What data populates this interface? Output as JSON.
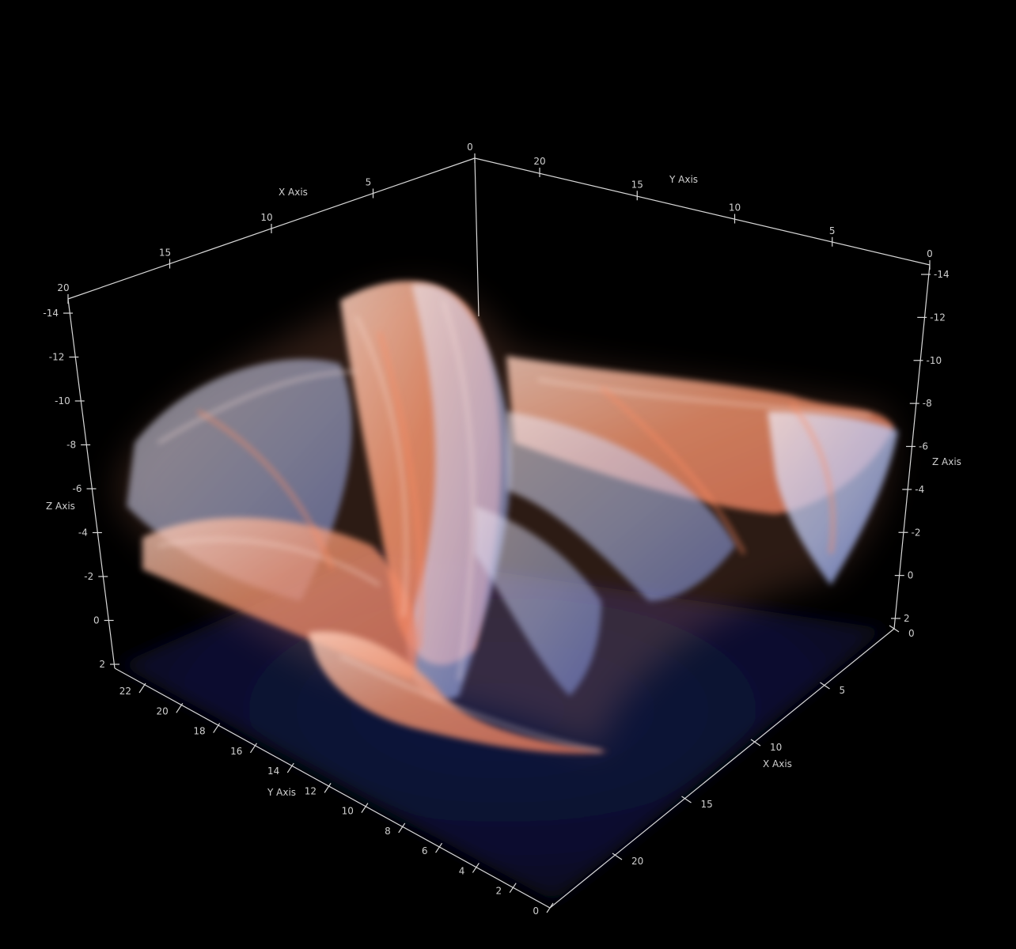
{
  "scene": {
    "background": "#000000",
    "volume_colors": {
      "floor": "#0a1030",
      "warm": "#f4956f",
      "cool": "#9fb4ff",
      "highlight": "#f6e6ea"
    }
  },
  "axes": {
    "color": "#d8d8d8",
    "top_x": {
      "title": "X Axis",
      "ticks": [
        "0",
        "5",
        "10",
        "15",
        "20"
      ]
    },
    "top_y": {
      "title": "Y Axis",
      "ticks": [
        "20",
        "15",
        "10",
        "5",
        "0"
      ]
    },
    "left_z": {
      "title": "Z Axis",
      "ticks": [
        "-14",
        "-12",
        "-10",
        "-8",
        "-6",
        "-4",
        "-2",
        "0",
        "2"
      ]
    },
    "right_z": {
      "title": "Z Axis",
      "ticks": [
        "-14",
        "-12",
        "-10",
        "-8",
        "-6",
        "-4",
        "-2",
        "0",
        "2"
      ]
    },
    "bottom_y": {
      "title": "Y Axis",
      "ticks": [
        "22",
        "20",
        "18",
        "16",
        "14",
        "12",
        "10",
        "8",
        "6",
        "4",
        "2",
        "0"
      ]
    },
    "bottom_x": {
      "title": "X Axis",
      "ticks": [
        "0",
        "5",
        "10",
        "15",
        "20"
      ]
    }
  }
}
